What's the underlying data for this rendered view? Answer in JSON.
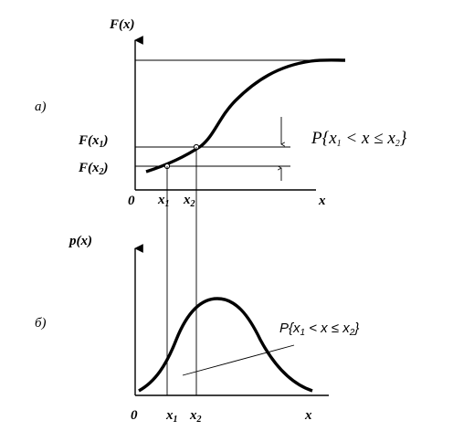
{
  "panel_a": {
    "marker": "a)",
    "y_label": "F(x)",
    "origin": "0",
    "x_label": "x",
    "x1": "x",
    "x1_sub": "1",
    "x2": "x",
    "x2_sub": "2",
    "f_x1_label": "F(x",
    "f_x1_sub": "1",
    "f_x1_close": ")",
    "f_x2_label": "F(x",
    "f_x2_sub": "2",
    "f_x2_close": ")",
    "prob_label_prefix": "P{",
    "prob_x1": "x",
    "prob_x1_sub": "1",
    "prob_mid": " < x ≤ ",
    "prob_x2": "x",
    "prob_x2_sub": "2",
    "prob_close": "}"
  },
  "panel_b": {
    "marker": "б)",
    "y_label": "p(x)",
    "origin": "0",
    "x_label": "x",
    "x1": "x",
    "x1_sub": "1",
    "x2": "x",
    "x2_sub": "2",
    "prob_label_prefix": "P{",
    "prob_x1": "x",
    "prob_x1_sub": "1",
    "prob_mid": " < x ≤ ",
    "prob_x2": "x",
    "prob_x2_sub": "2",
    "prob_close": "}"
  },
  "colors": {
    "ink": "#000000",
    "background": "#ffffff"
  }
}
